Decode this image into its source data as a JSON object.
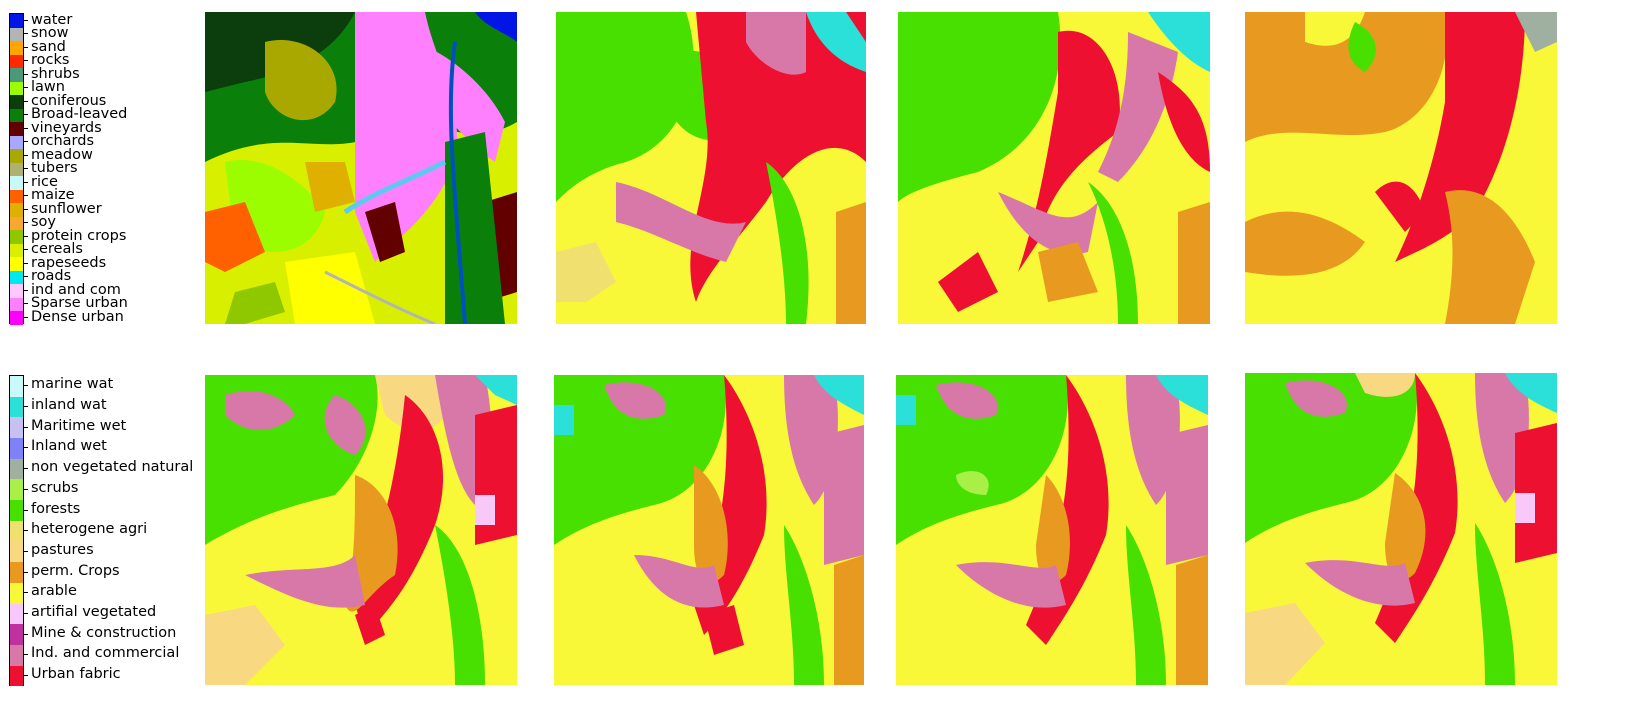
{
  "legend_top": {
    "items": [
      {
        "label": "water",
        "color": "#0015e6"
      },
      {
        "label": "snow",
        "color": "#b4b4b4"
      },
      {
        "label": "sand",
        "color": "#ffa500"
      },
      {
        "label": "rocks",
        "color": "#ff2a00"
      },
      {
        "label": "shrubs",
        "color": "#4a9a7a"
      },
      {
        "label": "lawn",
        "color": "#9cfc00"
      },
      {
        "label": "coniferous",
        "color": "#0c3d0c"
      },
      {
        "label": "Broad-leaved",
        "color": "#0a800a"
      },
      {
        "label": "vineyards",
        "color": "#620000"
      },
      {
        "label": "orchards",
        "color": "#a8a8ff"
      },
      {
        "label": "meadow",
        "color": "#a8a800"
      },
      {
        "label": "tubers",
        "color": "#b0b070"
      },
      {
        "label": "rice",
        "color": "#c8f8f8"
      },
      {
        "label": "maize",
        "color": "#ff6000"
      },
      {
        "label": "sunflower",
        "color": "#e0b000"
      },
      {
        "label": "soy",
        "color": "#f8a830"
      },
      {
        "label": "protein crops",
        "color": "#90c800"
      },
      {
        "label": "cereals",
        "color": "#d8f000"
      },
      {
        "label": "rapeseeds",
        "color": "#ffff00"
      },
      {
        "label": "roads",
        "color": "#00e8f0"
      },
      {
        "label": "ind and com",
        "color": "#ffc8ff"
      },
      {
        "label": "Sparse urban",
        "color": "#ff80ff"
      },
      {
        "label": "Dense urban",
        "color": "#ff00ff"
      }
    ]
  },
  "legend_bottom": {
    "items": [
      {
        "label": "marine wat",
        "color": "#c8fafa"
      },
      {
        "label": "inland wat",
        "color": "#2ae0d8"
      },
      {
        "label": "Maritime wet",
        "color": "#c8c0f0"
      },
      {
        "label": "Inland wet",
        "color": "#8080f8"
      },
      {
        "label": "non vegetated natural",
        "color": "#a0b0a0"
      },
      {
        "label": "scrubs",
        "color": "#a8f048"
      },
      {
        "label": "forests",
        "color": "#48e000"
      },
      {
        "label": "heterogene agri",
        "color": "#f0e070"
      },
      {
        "label": "pastures",
        "color": "#f8d880"
      },
      {
        "label": "perm. Crops",
        "color": "#e89a20"
      },
      {
        "label": "arable",
        "color": "#f8f838"
      },
      {
        "label": "artifial vegetated",
        "color": "#f8c8f8"
      },
      {
        "label": "Mine & construction",
        "color": "#c030a0"
      },
      {
        "label": "Ind. and commercial",
        "color": "#d878a8"
      },
      {
        "label": "Urban fabric",
        "color": "#ee1030"
      }
    ]
  }
}
